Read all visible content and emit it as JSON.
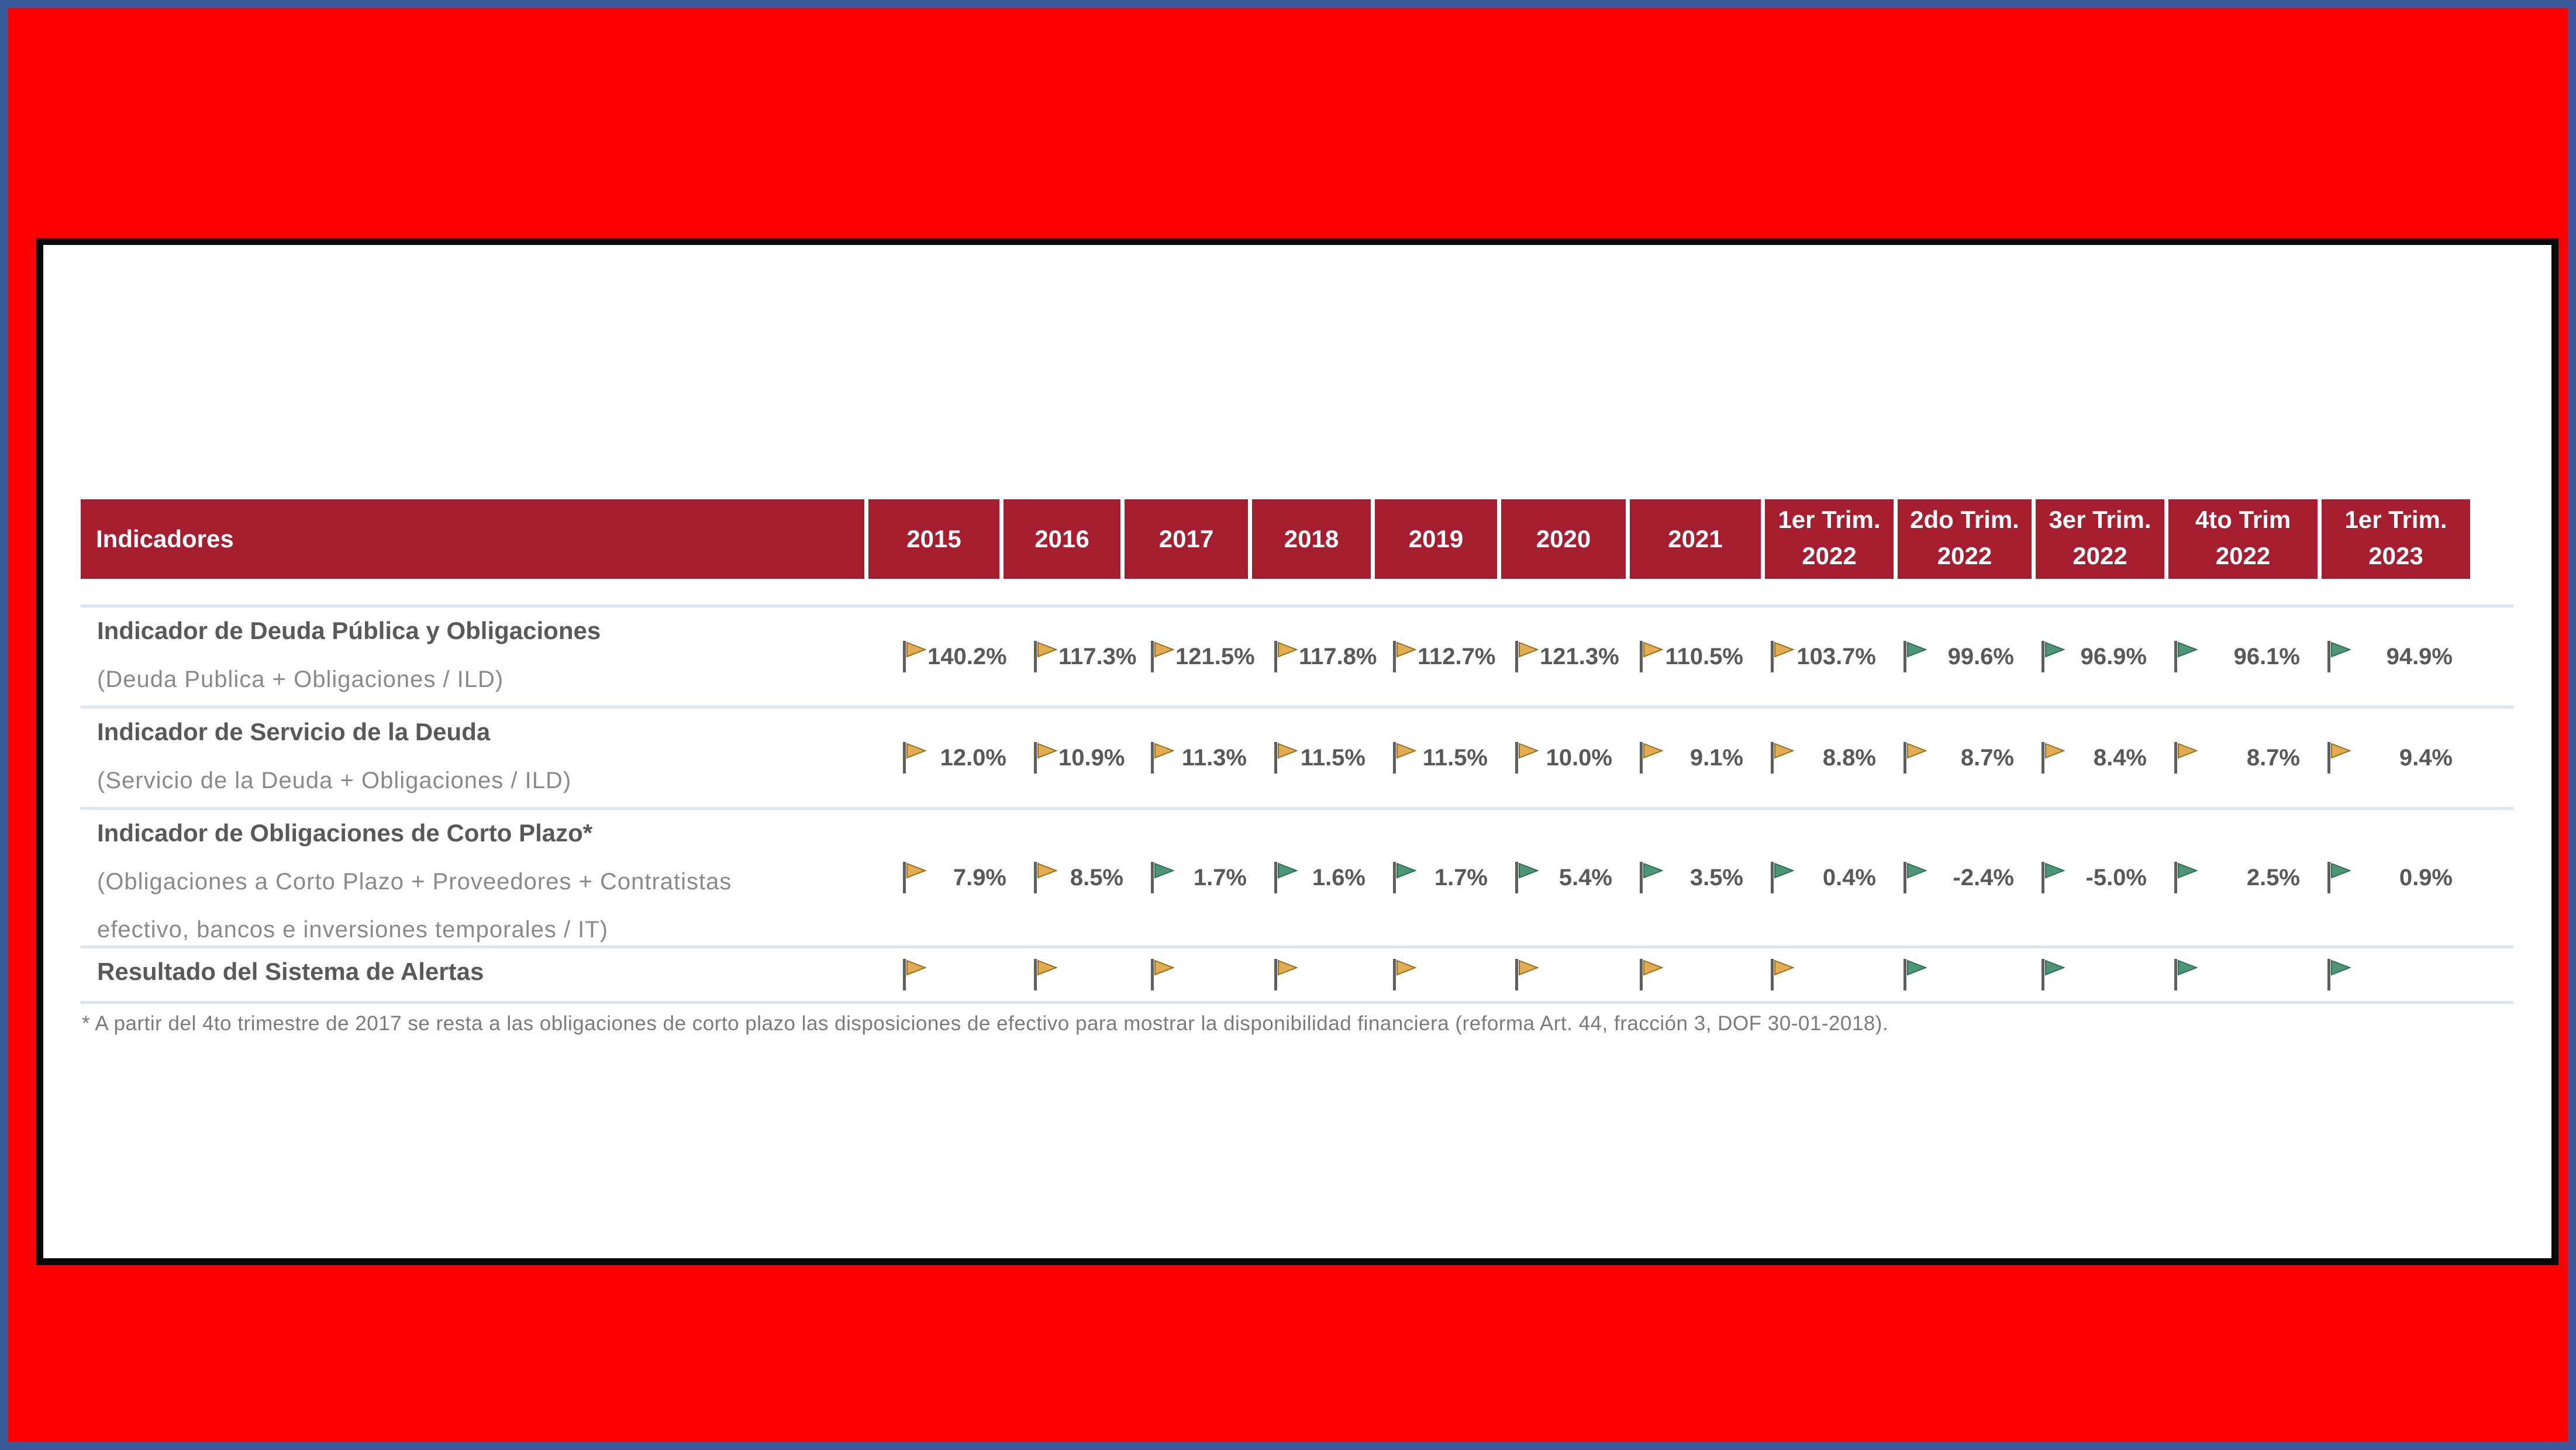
{
  "colors": {
    "page_background": "#FE0000",
    "outer_border": "#3C5A99",
    "panel_border": "#0A0A0A",
    "header_background": "#A51E2F",
    "header_text": "#FFFFFF",
    "row_separator": "#DCE6F2",
    "title_text": "#595959",
    "subtitle_text": "#8A8A8A",
    "footnote_text": "#7B7B7B",
    "flag_pole": "#5F5F5F",
    "flags": {
      "orange": {
        "fill": "#E4AC52",
        "stroke": "#96701E"
      },
      "green": {
        "fill": "#4E9478",
        "stroke": "#2E6F53"
      }
    }
  },
  "table": {
    "header": {
      "indicator_label": "Indicadores",
      "columns": [
        {
          "line1": "2015",
          "line2": ""
        },
        {
          "line1": "2016",
          "line2": ""
        },
        {
          "line1": "2017",
          "line2": ""
        },
        {
          "line1": "2018",
          "line2": ""
        },
        {
          "line1": "2019",
          "line2": ""
        },
        {
          "line1": "2020",
          "line2": ""
        },
        {
          "line1": "2021",
          "line2": ""
        },
        {
          "line1": "1er Trim.",
          "line2": "2022"
        },
        {
          "line1": "2do Trim.",
          "line2": "2022"
        },
        {
          "line1": "3er Trim.",
          "line2": "2022"
        },
        {
          "line1": "4to Trim",
          "line2": "2022"
        },
        {
          "line1": "1er Trim.",
          "line2": "2023"
        }
      ]
    },
    "rows": [
      {
        "title": "Indicador de Deuda Pública y Obligaciones",
        "subtitle_lines": [
          "(Deuda Publica + Obligaciones / ILD)"
        ],
        "cells": [
          {
            "flag": "orange",
            "value": "140.2%"
          },
          {
            "flag": "orange",
            "value": "117.3%"
          },
          {
            "flag": "orange",
            "value": "121.5%"
          },
          {
            "flag": "orange",
            "value": "117.8%"
          },
          {
            "flag": "orange",
            "value": "112.7%"
          },
          {
            "flag": "orange",
            "value": "121.3%"
          },
          {
            "flag": "orange",
            "value": "110.5%"
          },
          {
            "flag": "orange",
            "value": "103.7%"
          },
          {
            "flag": "green",
            "value": "99.6%"
          },
          {
            "flag": "green",
            "value": "96.9%"
          },
          {
            "flag": "green",
            "value": "96.1%"
          },
          {
            "flag": "green",
            "value": "94.9%"
          }
        ]
      },
      {
        "title": "Indicador de Servicio de la Deuda",
        "subtitle_lines": [
          "(Servicio de la Deuda + Obligaciones / ILD)"
        ],
        "cells": [
          {
            "flag": "orange",
            "value": "12.0%"
          },
          {
            "flag": "orange",
            "value": "10.9%"
          },
          {
            "flag": "orange",
            "value": "11.3%"
          },
          {
            "flag": "orange",
            "value": "11.5%"
          },
          {
            "flag": "orange",
            "value": "11.5%"
          },
          {
            "flag": "orange",
            "value": "10.0%"
          },
          {
            "flag": "orange",
            "value": "9.1%"
          },
          {
            "flag": "orange",
            "value": "8.8%"
          },
          {
            "flag": "orange",
            "value": "8.7%"
          },
          {
            "flag": "orange",
            "value": "8.4%"
          },
          {
            "flag": "orange",
            "value": "8.7%"
          },
          {
            "flag": "orange",
            "value": "9.4%"
          }
        ]
      },
      {
        "title": "Indicador de Obligaciones de Corto Plazo*",
        "subtitle_lines": [
          "(Obligaciones a Corto Plazo + Proveedores + Contratistas",
          "efectivo, bancos e inversiones temporales / IT)"
        ],
        "cells": [
          {
            "flag": "orange",
            "value": "7.9%"
          },
          {
            "flag": "orange",
            "value": "8.5%"
          },
          {
            "flag": "green",
            "value": "1.7%"
          },
          {
            "flag": "green",
            "value": "1.6%"
          },
          {
            "flag": "green",
            "value": "1.7%"
          },
          {
            "flag": "green",
            "value": "5.4%"
          },
          {
            "flag": "green",
            "value": "3.5%"
          },
          {
            "flag": "green",
            "value": "0.4%"
          },
          {
            "flag": "green",
            "value": "-2.4%"
          },
          {
            "flag": "green",
            "value": "-5.0%"
          },
          {
            "flag": "green",
            "value": "2.5%"
          },
          {
            "flag": "green",
            "value": "0.9%"
          }
        ]
      },
      {
        "title": "Resultado del Sistema de Alertas",
        "subtitle_lines": [],
        "cells": [
          {
            "flag": "orange",
            "value": ""
          },
          {
            "flag": "orange",
            "value": ""
          },
          {
            "flag": "orange",
            "value": ""
          },
          {
            "flag": "orange",
            "value": ""
          },
          {
            "flag": "orange",
            "value": ""
          },
          {
            "flag": "orange",
            "value": ""
          },
          {
            "flag": "orange",
            "value": ""
          },
          {
            "flag": "orange",
            "value": ""
          },
          {
            "flag": "green",
            "value": ""
          },
          {
            "flag": "green",
            "value": ""
          },
          {
            "flag": "green",
            "value": ""
          },
          {
            "flag": "green",
            "value": ""
          }
        ]
      }
    ],
    "footnote": "* A partir del 4to trimestre de 2017 se resta a las obligaciones de corto plazo las disposiciones de efectivo para mostrar la disponibilidad financiera (reforma Art. 44, fracción 3, DOF 30-01-2018)."
  }
}
